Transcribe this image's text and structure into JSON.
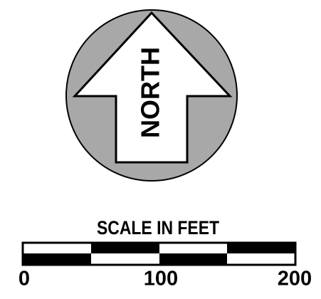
{
  "north_arrow": {
    "label": "NORTH"
  },
  "scale_bar": {
    "title": "SCALE IN FEET",
    "tick_labels": [
      "0",
      "100",
      "200"
    ]
  }
}
